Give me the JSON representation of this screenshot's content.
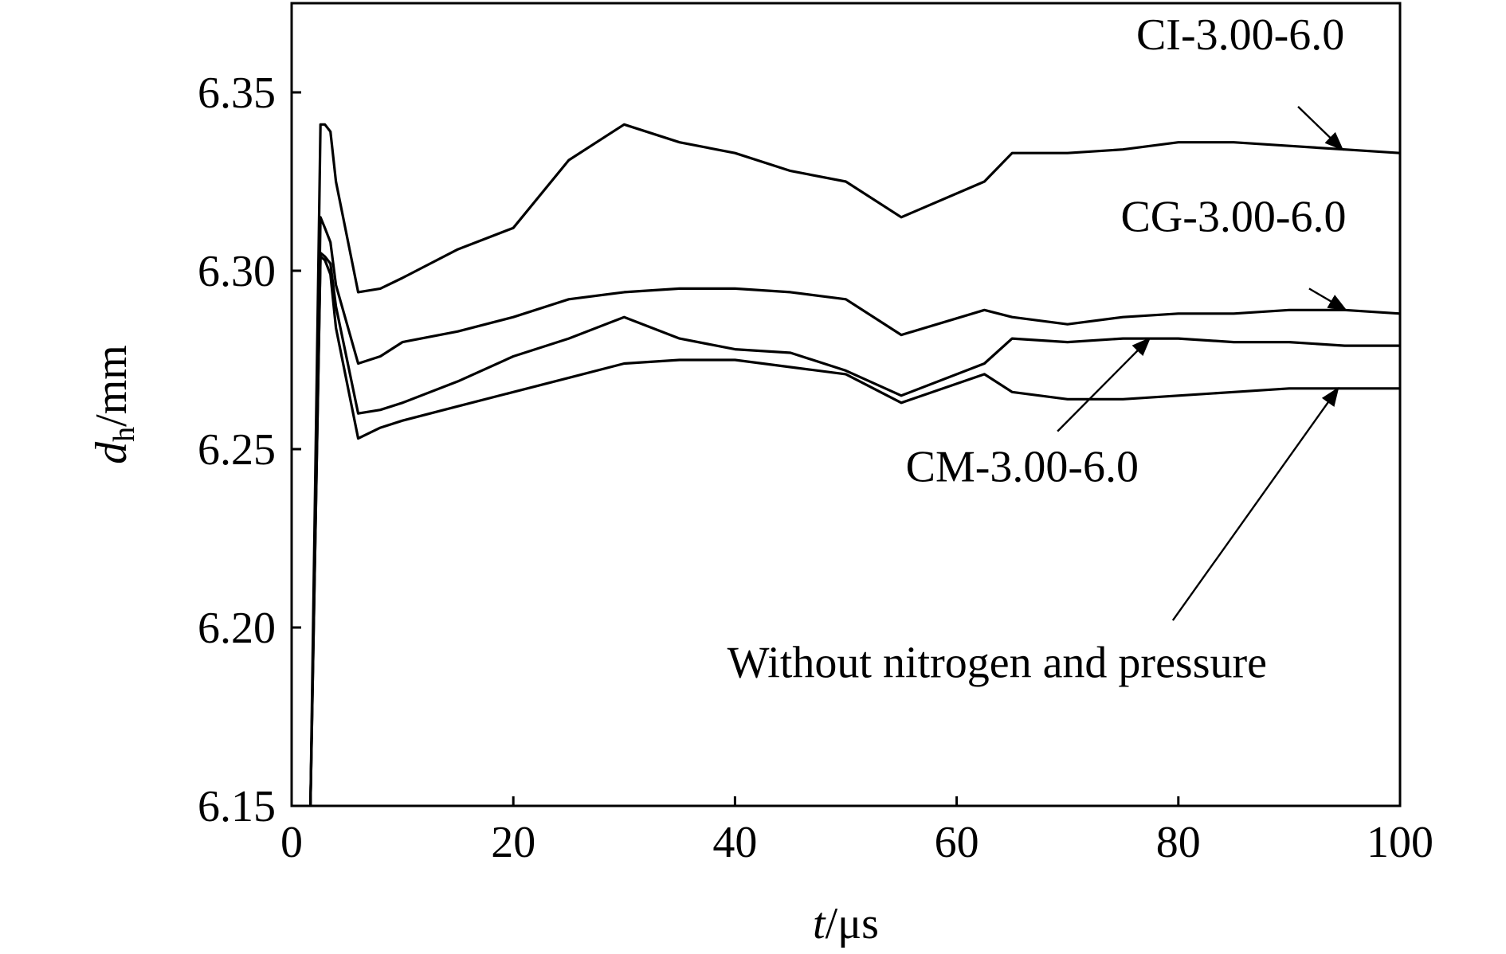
{
  "chart_data": {
    "type": "line",
    "title": "",
    "xlabel_italic": "t",
    "xlabel_unit": "/μs",
    "ylabel_italic": "d",
    "ylabel_sub": "h",
    "ylabel_unit": "/mm",
    "xlim": [
      0,
      100
    ],
    "ylim": [
      6.15,
      6.375
    ],
    "x_ticks": [
      0,
      20,
      40,
      60,
      80,
      100
    ],
    "y_ticks": [
      6.15,
      6.2,
      6.25,
      6.3,
      6.35
    ],
    "x_tick_labels": [
      "0",
      "20",
      "40",
      "60",
      "80",
      "100"
    ],
    "y_tick_labels": [
      "6.15",
      "6.20",
      "6.25",
      "6.30",
      "6.35"
    ],
    "grid": false,
    "series": [
      {
        "name": "CI-3.00-6.0",
        "x": [
          1.7,
          2.6,
          3.0,
          3.5,
          4.0,
          6.0,
          8.0,
          10,
          15,
          20,
          25,
          30,
          35,
          40,
          45,
          50,
          55,
          62.5,
          65,
          70,
          75,
          80,
          85,
          90,
          95,
          100
        ],
        "y": [
          6.15,
          6.341,
          6.341,
          6.339,
          6.325,
          6.294,
          6.295,
          6.298,
          6.306,
          6.312,
          6.331,
          6.341,
          6.336,
          6.333,
          6.328,
          6.325,
          6.315,
          6.325,
          6.333,
          6.333,
          6.334,
          6.336,
          6.336,
          6.335,
          6.334,
          6.333
        ]
      },
      {
        "name": "CG-3.00-6.0",
        "x": [
          1.7,
          2.6,
          3.0,
          3.5,
          4.0,
          6.0,
          8.0,
          10,
          15,
          20,
          25,
          30,
          35,
          40,
          45,
          50,
          55,
          62.5,
          65,
          70,
          75,
          80,
          85,
          90,
          95,
          100
        ],
        "y": [
          6.15,
          6.315,
          6.312,
          6.308,
          6.296,
          6.274,
          6.276,
          6.28,
          6.283,
          6.287,
          6.292,
          6.294,
          6.295,
          6.295,
          6.294,
          6.292,
          6.282,
          6.289,
          6.287,
          6.285,
          6.287,
          6.288,
          6.288,
          6.289,
          6.289,
          6.288
        ]
      },
      {
        "name": "CM-3.00-6.0",
        "x": [
          1.7,
          2.6,
          3.0,
          3.5,
          4.0,
          6.0,
          8.0,
          10,
          15,
          20,
          25,
          30,
          35,
          40,
          45,
          50,
          55,
          62.5,
          65,
          70,
          75,
          80,
          85,
          90,
          95,
          100
        ],
        "y": [
          6.15,
          6.305,
          6.304,
          6.302,
          6.29,
          6.26,
          6.261,
          6.263,
          6.269,
          6.276,
          6.281,
          6.287,
          6.281,
          6.278,
          6.277,
          6.272,
          6.265,
          6.274,
          6.281,
          6.28,
          6.281,
          6.281,
          6.28,
          6.28,
          6.279,
          6.279
        ]
      },
      {
        "name": "Without nitrogen and pressure",
        "x": [
          1.7,
          2.6,
          3.0,
          3.5,
          4.0,
          6.0,
          8.0,
          10,
          15,
          20,
          25,
          30,
          35,
          40,
          45,
          50,
          55,
          62.5,
          65,
          70,
          75,
          80,
          85,
          90,
          95,
          100
        ],
        "y": [
          6.15,
          6.304,
          6.303,
          6.299,
          6.284,
          6.253,
          6.256,
          6.258,
          6.262,
          6.266,
          6.27,
          6.274,
          6.275,
          6.275,
          6.273,
          6.271,
          6.263,
          6.271,
          6.266,
          6.264,
          6.264,
          6.265,
          6.266,
          6.267,
          6.267,
          6.267
        ]
      }
    ],
    "annotations": [
      {
        "text": "CI-3.00-6.0",
        "text_x": 76.2,
        "text_y": 6.362,
        "anchor": "start",
        "arrow_from": [
          90.8,
          6.346
        ],
        "arrow_to": [
          94.8,
          6.334
        ]
      },
      {
        "text": "CG-3.00-6.0",
        "text_x": 74.8,
        "text_y": 6.311,
        "anchor": "start",
        "arrow_from": [
          91.8,
          6.295
        ],
        "arrow_to": [
          95.1,
          6.289
        ]
      },
      {
        "text": "CM-3.00-6.0",
        "text_x": 55.4,
        "text_y": 6.241,
        "anchor": "start",
        "arrow_from": [
          69.1,
          6.255
        ],
        "arrow_to": [
          77.4,
          6.281
        ]
      },
      {
        "text": "Without nitrogen and pressure",
        "text_x": 39.3,
        "text_y": 6.186,
        "anchor": "start",
        "arrow_from": [
          79.5,
          6.202
        ],
        "arrow_to": [
          94.4,
          6.267
        ]
      }
    ]
  }
}
